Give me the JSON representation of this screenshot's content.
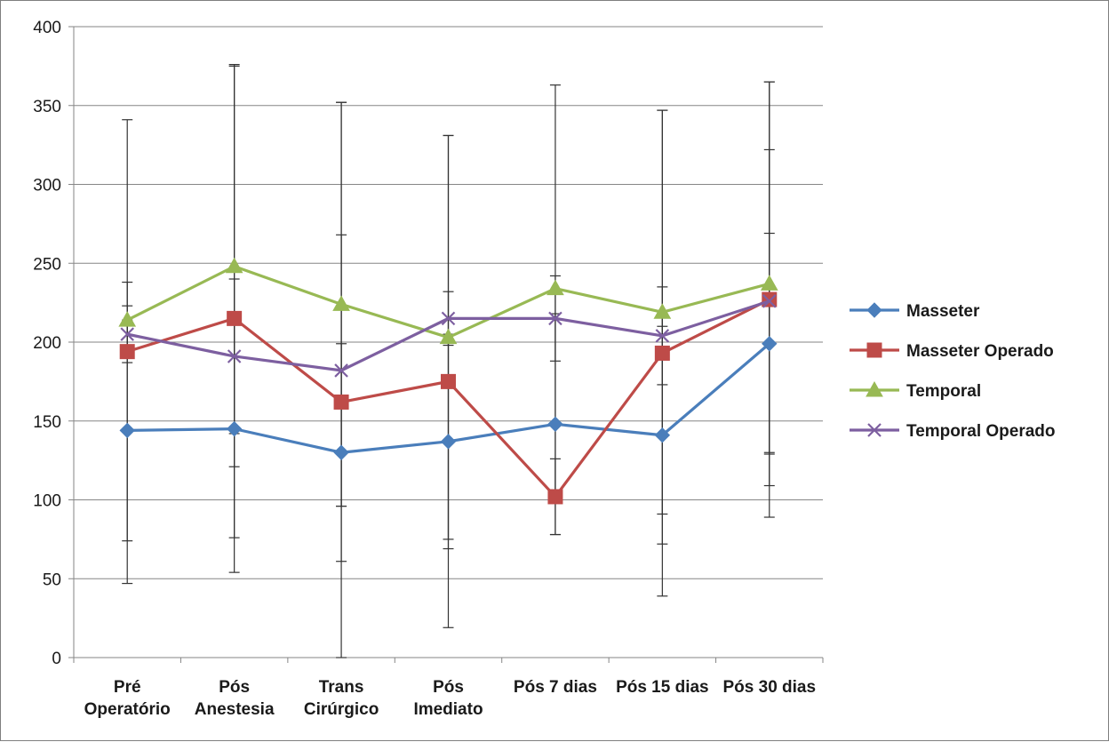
{
  "chart_data": {
    "type": "line",
    "title": "",
    "xlabel": "",
    "ylabel": "",
    "ylim": [
      0,
      400
    ],
    "yticks": [
      0,
      50,
      100,
      150,
      200,
      250,
      300,
      350,
      400
    ],
    "grid": "horizontal",
    "legend_position": "right",
    "categories": [
      [
        "Pré",
        "Operatório"
      ],
      [
        "Pós",
        "Anestesia"
      ],
      [
        "Trans",
        "Cirúrgico"
      ],
      [
        "Pós",
        "Imediato"
      ],
      [
        "Pós 7 dias"
      ],
      [
        "Pós 15 dias"
      ],
      [
        "Pós 30 dias"
      ]
    ],
    "series": [
      {
        "name": "Masseter",
        "color": "#4a7ebb",
        "marker": "diamond",
        "values": [
          144,
          145,
          130,
          137,
          148,
          141,
          199
        ],
        "error": [
          70,
          69,
          69,
          68,
          70,
          69,
          70
        ]
      },
      {
        "name": "Masseter Operado",
        "color": "#be4b48",
        "marker": "square",
        "values": [
          194,
          215,
          162,
          175,
          102,
          193,
          227
        ],
        "error": [
          147,
          161,
          190,
          156,
          24,
          154,
          138
        ]
      },
      {
        "name": "Temporal",
        "color": "#98b954",
        "marker": "triangle",
        "values": [
          214,
          248,
          224,
          203,
          234,
          219,
          237
        ],
        "error": [
          24,
          127,
          128,
          128,
          129,
          128,
          128
        ]
      },
      {
        "name": "Temporal Operado",
        "color": "#7d5fa0",
        "marker": "x",
        "values": [
          205,
          191,
          182,
          215,
          215,
          204,
          226
        ],
        "error": [
          18,
          49,
          86,
          17,
          27,
          31,
          96
        ]
      }
    ]
  }
}
